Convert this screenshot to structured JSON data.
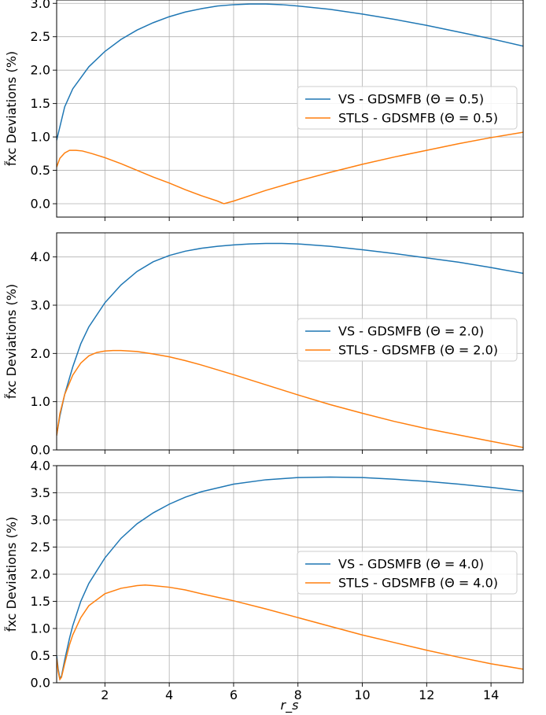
{
  "figure": {
    "xlabel": "r_s",
    "ylabel": "f̃xc Deviations (%)"
  },
  "chart_data": [
    {
      "type": "line",
      "xlim": [
        0.5,
        15
      ],
      "ylim": [
        -0.2,
        3.05
      ],
      "grid": true,
      "legend_position": "center-right",
      "yticks": [
        "0.0",
        "0.5",
        "1.0",
        "1.5",
        "2.0",
        "2.5",
        "3.0"
      ],
      "xticks": [
        "2",
        "4",
        "6",
        "8",
        "10",
        "12",
        "14"
      ],
      "show_xtick_labels": false,
      "ylabel": "f̃xc Deviations (%)",
      "series": [
        {
          "name": "VS - GDSMFB (Θ =  0.5)",
          "color": "#1f77b4",
          "x": [
            0.5,
            0.75,
            1.0,
            1.5,
            2.0,
            2.5,
            3.0,
            3.5,
            4.0,
            4.5,
            5.0,
            5.5,
            6.0,
            6.5,
            7.0,
            7.5,
            8.0,
            9.0,
            10.0,
            11.0,
            12.0,
            13.0,
            14.0,
            15.0
          ],
          "y": [
            0.95,
            1.45,
            1.72,
            2.05,
            2.28,
            2.46,
            2.6,
            2.71,
            2.8,
            2.87,
            2.92,
            2.96,
            2.98,
            2.99,
            2.99,
            2.98,
            2.96,
            2.91,
            2.84,
            2.76,
            2.67,
            2.57,
            2.47,
            2.36
          ]
        },
        {
          "name": "STLS - GDSMFB (Θ =  0.5)",
          "color": "#ff7f0e",
          "x": [
            0.5,
            0.6,
            0.75,
            0.9,
            1.1,
            1.3,
            1.6,
            2.0,
            2.5,
            3.0,
            3.5,
            4.0,
            4.5,
            5.0,
            5.5,
            5.7,
            6.0,
            7.0,
            8.0,
            9.0,
            10.0,
            11.0,
            12.0,
            13.0,
            14.0,
            15.0
          ],
          "y": [
            0.55,
            0.68,
            0.76,
            0.8,
            0.8,
            0.79,
            0.75,
            0.69,
            0.6,
            0.5,
            0.4,
            0.31,
            0.21,
            0.12,
            0.04,
            0.0,
            0.04,
            0.2,
            0.34,
            0.47,
            0.59,
            0.7,
            0.8,
            0.9,
            0.99,
            1.07
          ]
        }
      ]
    },
    {
      "type": "line",
      "xlim": [
        0.5,
        15
      ],
      "ylim": [
        0.0,
        4.5
      ],
      "grid": true,
      "legend_position": "center-right",
      "yticks": [
        "0.0",
        "1.0",
        "2.0",
        "3.0",
        "4.0"
      ],
      "xticks": [
        "2",
        "4",
        "6",
        "8",
        "10",
        "12",
        "14"
      ],
      "show_xtick_labels": false,
      "ylabel": "f̃xc Deviations (%)",
      "series": [
        {
          "name": "VS - GDSMFB (Θ =  2.0)",
          "color": "#1f77b4",
          "x": [
            0.5,
            0.6,
            0.75,
            1.0,
            1.25,
            1.5,
            2.0,
            2.5,
            3.0,
            3.5,
            4.0,
            4.5,
            5.0,
            5.5,
            6.0,
            6.5,
            7.0,
            7.5,
            8.0,
            9.0,
            10.0,
            11.0,
            12.0,
            13.0,
            14.0,
            15.0
          ],
          "y": [
            0.3,
            0.7,
            1.15,
            1.72,
            2.2,
            2.55,
            3.05,
            3.42,
            3.7,
            3.9,
            4.03,
            4.12,
            4.18,
            4.22,
            4.25,
            4.27,
            4.28,
            4.28,
            4.27,
            4.22,
            4.15,
            4.07,
            3.98,
            3.89,
            3.78,
            3.66
          ]
        },
        {
          "name": "STLS - GDSMFB (Θ =  2.0)",
          "color": "#ff7f0e",
          "x": [
            0.5,
            0.6,
            0.75,
            1.0,
            1.25,
            1.5,
            1.75,
            2.0,
            2.25,
            2.5,
            3.0,
            3.5,
            4.0,
            4.5,
            5.0,
            6.0,
            7.0,
            8.0,
            9.0,
            10.0,
            11.0,
            12.0,
            13.0,
            14.0,
            15.0
          ],
          "y": [
            0.3,
            0.75,
            1.15,
            1.55,
            1.8,
            1.95,
            2.02,
            2.05,
            2.06,
            2.06,
            2.04,
            1.99,
            1.93,
            1.85,
            1.76,
            1.56,
            1.35,
            1.14,
            0.94,
            0.76,
            0.59,
            0.44,
            0.31,
            0.18,
            0.05
          ]
        }
      ]
    },
    {
      "type": "line",
      "xlim": [
        0.5,
        15
      ],
      "ylim": [
        0.0,
        4.0
      ],
      "grid": true,
      "legend_position": "center-right",
      "yticks": [
        "0.0",
        "0.5",
        "1.0",
        "1.5",
        "2.0",
        "2.5",
        "3.0",
        "3.5",
        "4.0"
      ],
      "xticks": [
        "2",
        "4",
        "6",
        "8",
        "10",
        "12",
        "14"
      ],
      "show_xtick_labels": true,
      "xlabel": "r_s",
      "ylabel": "f̃xc Deviations (%)",
      "series": [
        {
          "name": "VS - GDSMFB (Θ =  4.0)",
          "color": "#1f77b4",
          "x": [
            0.5,
            0.55,
            0.6,
            0.65,
            0.75,
            0.9,
            1.0,
            1.25,
            1.5,
            2.0,
            2.5,
            3.0,
            3.5,
            4.0,
            4.5,
            5.0,
            6.0,
            7.0,
            8.0,
            9.0,
            10.0,
            11.0,
            12.0,
            13.0,
            14.0,
            15.0
          ],
          "y": [
            0.5,
            0.25,
            0.08,
            0.12,
            0.42,
            0.82,
            1.05,
            1.5,
            1.83,
            2.3,
            2.66,
            2.93,
            3.13,
            3.29,
            3.42,
            3.52,
            3.66,
            3.74,
            3.78,
            3.79,
            3.78,
            3.75,
            3.71,
            3.66,
            3.6,
            3.53
          ]
        },
        {
          "name": "STLS - GDSMFB (Θ =  4.0)",
          "color": "#ff7f0e",
          "x": [
            0.5,
            0.55,
            0.6,
            0.65,
            0.75,
            0.9,
            1.0,
            1.25,
            1.5,
            2.0,
            2.5,
            3.0,
            3.25,
            3.5,
            4.0,
            4.5,
            5.0,
            6.0,
            7.0,
            8.0,
            9.0,
            10.0,
            11.0,
            12.0,
            13.0,
            14.0,
            15.0
          ],
          "y": [
            0.45,
            0.2,
            0.06,
            0.1,
            0.35,
            0.7,
            0.88,
            1.2,
            1.42,
            1.64,
            1.74,
            1.79,
            1.8,
            1.79,
            1.76,
            1.71,
            1.64,
            1.51,
            1.36,
            1.2,
            1.04,
            0.88,
            0.74,
            0.6,
            0.47,
            0.35,
            0.25
          ]
        }
      ]
    }
  ]
}
